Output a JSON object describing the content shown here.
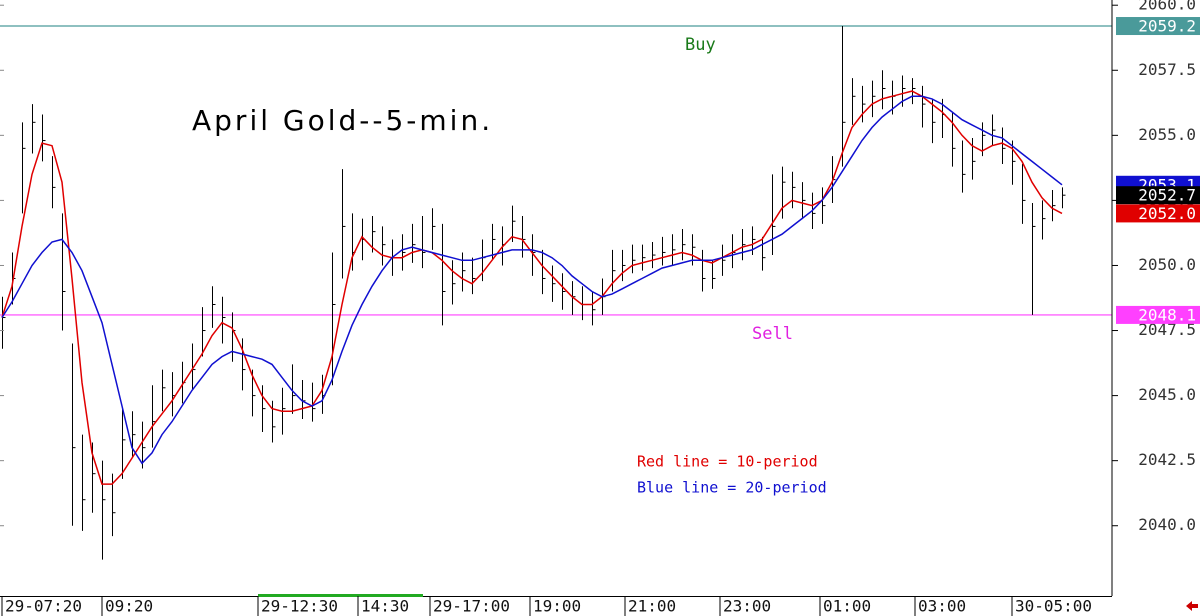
{
  "chart_data": {
    "type": "ohlc",
    "title": "April Gold--5-min.",
    "notes": [
      {
        "text": "Red line = 10-period",
        "color": "#e00000"
      },
      {
        "text": "Blue line = 20-period",
        "color": "#1010d0"
      }
    ],
    "xlim": [
      -0.2,
      111
    ],
    "xticks": [
      {
        "value": 0,
        "label": "29-07:20"
      },
      {
        "value": 10,
        "label": "09:20"
      },
      {
        "value": 25.6,
        "label": "29-12:30"
      },
      {
        "value": 35.6,
        "label": "14:30"
      },
      {
        "value": 42.8,
        "label": "29-17:00"
      },
      {
        "value": 52.8,
        "label": "19:00"
      },
      {
        "value": 62.3,
        "label": "21:00"
      },
      {
        "value": 71.8,
        "label": "23:00"
      },
      {
        "value": 81.8,
        "label": "01:00"
      },
      {
        "value": 91.3,
        "label": "03:00"
      },
      {
        "value": 101,
        "label": "30-05:00"
      }
    ],
    "ylim": [
      2037.3,
      2060.2
    ],
    "yticks": [
      {
        "value": 2040,
        "label": "2040.0"
      },
      {
        "value": 2042.5,
        "label": "2042.5"
      },
      {
        "value": 2045,
        "label": "2045.0"
      },
      {
        "value": 2047.5,
        "label": "2047.5"
      },
      {
        "value": 2050,
        "label": "2050.0"
      },
      {
        "value": 2052.5,
        "label": "2052.5"
      },
      {
        "value": 2055,
        "label": "2055.0"
      },
      {
        "value": 2057.5,
        "label": "2057.5"
      },
      {
        "value": 2060,
        "label": "2060.0"
      }
    ],
    "levels": [
      {
        "value": 2059.2,
        "label": "Buy",
        "color": "#4a9a9a",
        "text_color": "#1a7a1a",
        "text_at": 68.3
      },
      {
        "value": 2048.1,
        "label": "Sell",
        "color": "#ff40ff",
        "text_color": "#e020e0",
        "text_at": 75
      }
    ],
    "price_tags": [
      {
        "value": 2059.2,
        "label": "2059.2",
        "color": "#4a9a9a"
      },
      {
        "value": 2053.1,
        "label": "2053.1",
        "color": "#1010d0"
      },
      {
        "value": 2052.7,
        "label": "2052.7",
        "color": "#000000"
      },
      {
        "value": 2052.0,
        "label": "2052.0",
        "color": "#e00000"
      },
      {
        "value": 2048.1,
        "label": "2048.1",
        "color": "#ff40ff"
      }
    ],
    "bars": {
      "color": "#000000",
      "high": [
        2048.8,
        2050.5,
        2055.5,
        2056.2,
        2055.8,
        2054.2,
        2052.0,
        2047.0,
        2043.5,
        2043.2,
        2042.5,
        2042.0,
        2044.5,
        2044.4,
        2044.0,
        2045.4,
        2046.0,
        2045.9,
        2046.3,
        2047.0,
        2048.4,
        2049.2,
        2048.8,
        2048.2,
        2047.2,
        2046.0,
        2045.4,
        2044.8,
        2045.3,
        2046.2,
        2045.6,
        2045.5,
        2045.8,
        2050.5,
        2053.7,
        2052.0,
        2051.8,
        2051.9,
        2051.5,
        2051.0,
        2051.2,
        2051.6,
        2051.9,
        2052.2,
        2051.6,
        2050.2,
        2050.5,
        2050.3,
        2051.0,
        2051.6,
        2051.5,
        2052.3,
        2051.9,
        2051.2,
        2050.6,
        2050.0,
        2049.7,
        2049.4,
        2049.2,
        2049.0,
        2049.5,
        2050.6,
        2050.6,
        2050.8,
        2050.8,
        2050.9,
        2051.1,
        2051.2,
        2051.4,
        2051.2,
        2050.6,
        2050.2,
        2050.8,
        2051.2,
        2051.4,
        2051.5,
        2051.1,
        2053.5,
        2053.8,
        2053.6,
        2053.2,
        2052.8,
        2053.0,
        2054.2,
        2059.2,
        2057.2,
        2056.9,
        2057.1,
        2057.5,
        2057.1,
        2057.3,
        2057.2,
        2056.9,
        2056.4,
        2056.4,
        2055.9,
        2054.8,
        2054.9,
        2055.5,
        2055.8,
        2055.3,
        2054.8,
        2053.9,
        2052.4,
        2052.5,
        2052.9,
        2053.0
      ],
      "low": [
        2046.8,
        2048.5,
        2052.0,
        2054.3,
        2054.0,
        2052.2,
        2047.5,
        2040.0,
        2039.8,
        2040.5,
        2038.7,
        2039.6,
        2041.8,
        2042.6,
        2042.2,
        2043.0,
        2044.4,
        2044.2,
        2044.7,
        2045.2,
        2046.5,
        2047.6,
        2047.0,
        2046.3,
        2045.2,
        2044.2,
        2043.6,
        2043.2,
        2043.5,
        2044.3,
        2044.1,
        2044.0,
        2044.3,
        2045.4,
        2049.5,
        2049.8,
        2050.2,
        2050.5,
        2050.0,
        2049.6,
        2049.8,
        2050.1,
        2049.9,
        2050.6,
        2047.7,
        2048.5,
        2049.0,
        2048.9,
        2049.4,
        2050.2,
        2050.0,
        2050.9,
        2050.3,
        2049.6,
        2048.9,
        2048.6,
        2048.3,
        2048.1,
        2047.9,
        2047.7,
        2048.1,
        2049.0,
        2049.4,
        2049.7,
        2049.8,
        2049.9,
        2050.0,
        2050.0,
        2050.2,
        2050.0,
        2049.0,
        2049.1,
        2049.6,
        2049.9,
        2050.2,
        2050.4,
        2049.8,
        2050.4,
        2051.8,
        2052.2,
        2051.8,
        2051.4,
        2051.6,
        2052.4,
        2053.8,
        2055.4,
        2055.5,
        2055.7,
        2056.0,
        2055.8,
        2056.1,
        2056.2,
        2055.3,
        2054.7,
        2054.9,
        2053.8,
        2052.8,
        2053.3,
        2054.2,
        2054.6,
        2053.9,
        2053.1,
        2051.6,
        2048.1,
        2051.0,
        2051.7,
        2052.2
      ],
      "close": [
        2048.0,
        2049.5,
        2054.5,
        2055.5,
        2054.8,
        2053.0,
        2049.0,
        2043.0,
        2041.0,
        2042.0,
        2041.0,
        2040.5,
        2043.3,
        2043.5,
        2043.0,
        2044.0,
        2045.3,
        2045.0,
        2045.5,
        2046.0,
        2047.5,
        2048.5,
        2048.0,
        2047.5,
        2046.0,
        2045.0,
        2044.5,
        2043.8,
        2044.5,
        2045.0,
        2044.8,
        2044.5,
        2045.0,
        2048.5,
        2051.5,
        2050.5,
        2051.0,
        2051.3,
        2050.8,
        2050.3,
        2050.5,
        2050.8,
        2050.5,
        2051.5,
        2049.0,
        2049.3,
        2049.8,
        2049.5,
        2050.3,
        2051.0,
        2050.8,
        2051.7,
        2051.0,
        2050.5,
        2049.5,
        2049.3,
        2049.0,
        2048.8,
        2048.5,
        2048.3,
        2048.8,
        2049.8,
        2050.0,
        2050.2,
        2050.3,
        2050.4,
        2050.5,
        2050.6,
        2050.8,
        2050.7,
        2049.5,
        2049.5,
        2050.2,
        2050.5,
        2050.8,
        2051.0,
        2050.3,
        2051.5,
        2053.2,
        2053.0,
        2052.5,
        2052.0,
        2052.3,
        2053.3,
        2055.5,
        2056.5,
        2056.2,
        2056.5,
        2056.8,
        2056.5,
        2056.8,
        2056.8,
        2056.2,
        2055.5,
        2055.8,
        2054.5,
        2053.5,
        2054.0,
        2055.0,
        2055.2,
        2054.5,
        2054.0,
        2052.5,
        2051.5,
        2051.8,
        2052.3,
        2052.7
      ]
    },
    "series": [
      {
        "color": "#e00000",
        "values": [
          2048.0,
          2049.2,
          2051.5,
          2053.5,
          2054.7,
          2054.6,
          2053.2,
          2049.5,
          2045.5,
          2042.8,
          2041.6,
          2041.6,
          2042.0,
          2042.6,
          2043.2,
          2043.8,
          2044.3,
          2044.8,
          2045.4,
          2046.0,
          2046.6,
          2047.3,
          2047.8,
          2047.6,
          2046.8,
          2045.8,
          2045.0,
          2044.5,
          2044.4,
          2044.4,
          2044.5,
          2044.6,
          2045.2,
          2046.5,
          2048.5,
          2050.3,
          2051.1,
          2050.7,
          2050.4,
          2050.3,
          2050.3,
          2050.5,
          2050.6,
          2050.5,
          2050.2,
          2049.8,
          2049.5,
          2049.3,
          2049.7,
          2050.2,
          2050.7,
          2051.1,
          2051.0,
          2050.5,
          2050.0,
          2049.6,
          2049.2,
          2048.8,
          2048.5,
          2048.5,
          2048.8,
          2049.3,
          2049.7,
          2050.0,
          2050.1,
          2050.2,
          2050.3,
          2050.4,
          2050.5,
          2050.4,
          2050.2,
          2050.1,
          2050.3,
          2050.5,
          2050.7,
          2050.8,
          2051.0,
          2051.6,
          2052.2,
          2052.5,
          2052.4,
          2052.3,
          2052.5,
          2053.2,
          2054.3,
          2055.3,
          2055.8,
          2056.2,
          2056.4,
          2056.5,
          2056.6,
          2056.7,
          2056.5,
          2056.2,
          2055.9,
          2055.5,
          2055.0,
          2054.6,
          2054.4,
          2054.6,
          2054.7,
          2054.5,
          2054.0,
          2053.2,
          2052.6,
          2052.2,
          2052.0
        ]
      },
      {
        "color": "#1010d0",
        "values": [
          2048.0,
          2048.6,
          2049.3,
          2050.0,
          2050.5,
          2050.9,
          2051.0,
          2050.5,
          2049.8,
          2048.8,
          2047.8,
          2046.2,
          2044.6,
          2043.0,
          2042.4,
          2042.8,
          2043.5,
          2044.0,
          2044.6,
          2045.2,
          2045.7,
          2046.2,
          2046.5,
          2046.7,
          2046.6,
          2046.5,
          2046.4,
          2046.2,
          2045.7,
          2045.2,
          2044.8,
          2044.6,
          2044.8,
          2045.6,
          2046.7,
          2047.7,
          2048.5,
          2049.2,
          2049.8,
          2050.3,
          2050.6,
          2050.7,
          2050.6,
          2050.5,
          2050.4,
          2050.3,
          2050.2,
          2050.2,
          2050.3,
          2050.4,
          2050.5,
          2050.6,
          2050.6,
          2050.6,
          2050.5,
          2050.3,
          2050.0,
          2049.6,
          2049.3,
          2049.0,
          2048.8,
          2048.9,
          2049.1,
          2049.3,
          2049.5,
          2049.7,
          2049.9,
          2050.0,
          2050.1,
          2050.2,
          2050.2,
          2050.2,
          2050.3,
          2050.4,
          2050.5,
          2050.6,
          2050.8,
          2051.0,
          2051.2,
          2051.5,
          2051.8,
          2052.1,
          2052.5,
          2053.0,
          2053.6,
          2054.2,
          2054.8,
          2055.3,
          2055.7,
          2056.0,
          2056.3,
          2056.5,
          2056.5,
          2056.4,
          2056.2,
          2055.9,
          2055.6,
          2055.4,
          2055.2,
          2055.0,
          2054.9,
          2054.6,
          2054.3,
          2054.0,
          2053.7,
          2053.4,
          2053.1
        ]
      }
    ]
  }
}
